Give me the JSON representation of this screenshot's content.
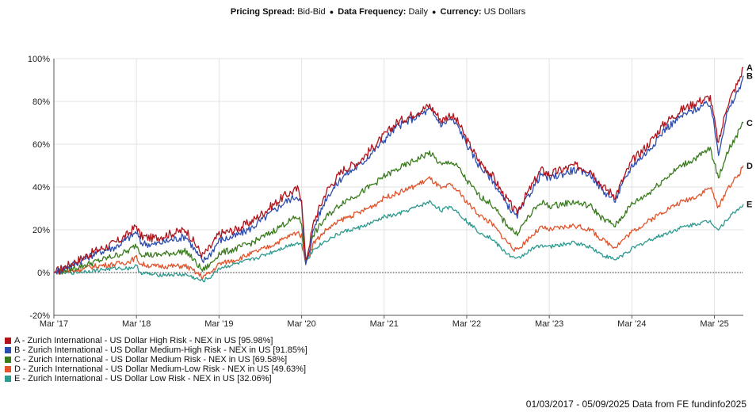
{
  "header": {
    "pricing_label": "Pricing Spread:",
    "pricing_value": "Bid-Bid",
    "frequency_label": "Data Frequency:",
    "frequency_value": "Daily",
    "currency_label": "Currency:",
    "currency_value": "US Dollars",
    "separator": "●"
  },
  "footer": {
    "text": "01/03/2017 - 05/09/2025 Data from FE fundinfo2025"
  },
  "chart_data": {
    "type": "line",
    "title": "",
    "xlabel": "",
    "ylabel": "",
    "x_ticks": [
      "Mar '17",
      "Mar '18",
      "Mar '19",
      "Mar '20",
      "Mar '21",
      "Mar '22",
      "Mar '23",
      "Mar '24",
      "Mar '25"
    ],
    "x_range": [
      2017.0,
      2025.35
    ],
    "x_tick_positions": [
      2017.0,
      2018.0,
      2019.0,
      2020.0,
      2021.0,
      2022.0,
      2023.0,
      2024.0,
      2025.0
    ],
    "y_ticks": [
      "100%",
      "80%",
      "60%",
      "40%",
      "20%",
      "0%",
      "-20%"
    ],
    "y_tick_values": [
      100,
      80,
      60,
      40,
      20,
      0,
      -20
    ],
    "ylim": [
      -20,
      100
    ],
    "grid": true,
    "legend_position": "bottom-left",
    "series": [
      {
        "name": "A - Zurich International - US Dollar High Risk - NEX in US [95.98%]",
        "end_label": "A",
        "color": "#b2131b",
        "x": [
          2017.0,
          2017.25,
          2017.5,
          2017.75,
          2017.9,
          2018.0,
          2018.05,
          2018.2,
          2018.4,
          2018.6,
          2018.8,
          2018.9,
          2019.0,
          2019.2,
          2019.4,
          2019.6,
          2019.8,
          2019.95,
          2020.0,
          2020.05,
          2020.15,
          2020.3,
          2020.5,
          2020.7,
          2020.9,
          2021.0,
          2021.15,
          2021.35,
          2021.55,
          2021.7,
          2021.8,
          2021.9,
          2022.0,
          2022.15,
          2022.3,
          2022.45,
          2022.6,
          2022.75,
          2022.9,
          2023.0,
          2023.15,
          2023.3,
          2023.5,
          2023.65,
          2023.8,
          2024.0,
          2024.2,
          2024.4,
          2024.6,
          2024.8,
          2024.95,
          2025.05,
          2025.15,
          2025.3,
          2025.35
        ],
        "y": [
          0,
          5,
          10,
          14,
          18,
          22,
          17,
          16,
          18,
          20,
          8,
          12,
          18,
          20,
          24,
          30,
          36,
          39,
          35,
          5,
          24,
          38,
          48,
          52,
          60,
          64,
          70,
          74,
          78,
          71,
          74,
          70,
          62,
          52,
          46,
          36,
          28,
          38,
          48,
          46,
          48,
          50,
          48,
          40,
          36,
          52,
          60,
          70,
          76,
          80,
          82,
          60,
          78,
          90,
          96
        ]
      },
      {
        "name": "B - Zurich International - US Dollar Medium-High Risk - NEX in US [91.85%]",
        "end_label": "B",
        "color": "#2c4db0",
        "x": [
          2017.0,
          2017.25,
          2017.5,
          2017.75,
          2017.9,
          2018.0,
          2018.05,
          2018.2,
          2018.4,
          2018.6,
          2018.8,
          2018.9,
          2019.0,
          2019.2,
          2019.4,
          2019.6,
          2019.8,
          2019.95,
          2020.0,
          2020.05,
          2020.15,
          2020.3,
          2020.5,
          2020.7,
          2020.9,
          2021.0,
          2021.15,
          2021.35,
          2021.55,
          2021.7,
          2021.8,
          2021.9,
          2022.0,
          2022.15,
          2022.3,
          2022.45,
          2022.6,
          2022.75,
          2022.9,
          2023.0,
          2023.15,
          2023.3,
          2023.5,
          2023.65,
          2023.8,
          2024.0,
          2024.2,
          2024.4,
          2024.6,
          2024.8,
          2024.95,
          2025.05,
          2025.15,
          2025.3,
          2025.35
        ],
        "y": [
          0,
          4,
          9,
          12,
          16,
          19,
          14,
          13,
          15,
          17,
          5,
          9,
          15,
          17,
          21,
          27,
          33,
          36,
          32,
          3,
          21,
          35,
          45,
          50,
          58,
          62,
          68,
          72,
          76,
          69,
          72,
          68,
          60,
          50,
          44,
          34,
          26,
          36,
          46,
          44,
          46,
          48,
          46,
          38,
          34,
          50,
          57,
          67,
          73,
          77,
          79,
          56,
          74,
          86,
          92
        ]
      },
      {
        "name": "C - Zurich International - US Dollar Medium Risk - NEX in US [69.58%]",
        "end_label": "C",
        "color": "#3a7b1e",
        "x": [
          2017.0,
          2017.25,
          2017.5,
          2017.75,
          2017.9,
          2018.0,
          2018.05,
          2018.2,
          2018.4,
          2018.6,
          2018.8,
          2018.9,
          2019.0,
          2019.2,
          2019.4,
          2019.6,
          2019.8,
          2019.95,
          2020.0,
          2020.05,
          2020.15,
          2020.3,
          2020.5,
          2020.7,
          2020.9,
          2021.0,
          2021.15,
          2021.35,
          2021.55,
          2021.7,
          2021.8,
          2021.9,
          2022.0,
          2022.15,
          2022.3,
          2022.45,
          2022.6,
          2022.75,
          2022.9,
          2023.0,
          2023.15,
          2023.3,
          2023.5,
          2023.65,
          2023.8,
          2024.0,
          2024.2,
          2024.4,
          2024.6,
          2024.8,
          2024.95,
          2025.05,
          2025.15,
          2025.3,
          2025.35
        ],
        "y": [
          0,
          2,
          5,
          8,
          10,
          13,
          9,
          8,
          9,
          10,
          1,
          4,
          9,
          11,
          14,
          18,
          23,
          26,
          23,
          5,
          18,
          26,
          33,
          37,
          42,
          45,
          48,
          52,
          56,
          50,
          52,
          49,
          43,
          36,
          32,
          24,
          18,
          26,
          33,
          31,
          32,
          33,
          31,
          25,
          22,
          32,
          37,
          44,
          50,
          54,
          58,
          44,
          56,
          66,
          70
        ]
      },
      {
        "name": "D - Zurich International - US Dollar Medium-Low Risk - NEX in US [49.63%]",
        "end_label": "D",
        "color": "#e0532b",
        "x": [
          2017.0,
          2017.25,
          2017.5,
          2017.75,
          2017.9,
          2018.0,
          2018.05,
          2018.2,
          2018.4,
          2018.6,
          2018.8,
          2018.9,
          2019.0,
          2019.2,
          2019.4,
          2019.6,
          2019.8,
          2019.95,
          2020.0,
          2020.05,
          2020.15,
          2020.3,
          2020.5,
          2020.7,
          2020.9,
          2021.0,
          2021.15,
          2021.35,
          2021.55,
          2021.7,
          2021.8,
          2021.9,
          2022.0,
          2022.15,
          2022.3,
          2022.45,
          2022.6,
          2022.75,
          2022.9,
          2023.0,
          2023.15,
          2023.3,
          2023.5,
          2023.65,
          2023.8,
          2024.0,
          2024.2,
          2024.4,
          2024.6,
          2024.8,
          2024.95,
          2025.05,
          2025.15,
          2025.3,
          2025.35
        ],
        "y": [
          0,
          1,
          3,
          4,
          5,
          7,
          4,
          3,
          3,
          3,
          -2,
          0,
          4,
          6,
          9,
          12,
          16,
          19,
          17,
          5,
          14,
          20,
          25,
          28,
          32,
          35,
          37,
          40,
          44,
          39,
          41,
          38,
          33,
          27,
          23,
          16,
          10,
          16,
          21,
          20,
          21,
          22,
          20,
          15,
          12,
          19,
          24,
          29,
          33,
          36,
          40,
          30,
          39,
          46,
          50
        ]
      },
      {
        "name": "E - Zurich International - US Dollar Low Risk - NEX in US [32.06%]",
        "end_label": "E",
        "color": "#2e9a8f",
        "x": [
          2017.0,
          2017.25,
          2017.5,
          2017.75,
          2017.9,
          2018.0,
          2018.05,
          2018.2,
          2018.4,
          2018.6,
          2018.8,
          2018.9,
          2019.0,
          2019.2,
          2019.4,
          2019.6,
          2019.8,
          2019.95,
          2020.0,
          2020.05,
          2020.15,
          2020.3,
          2020.5,
          2020.7,
          2020.9,
          2021.0,
          2021.15,
          2021.35,
          2021.55,
          2021.7,
          2021.8,
          2021.9,
          2022.0,
          2022.15,
          2022.3,
          2022.45,
          2022.6,
          2022.75,
          2022.9,
          2023.0,
          2023.15,
          2023.3,
          2023.5,
          2023.65,
          2023.8,
          2024.0,
          2024.2,
          2024.4,
          2024.6,
          2024.8,
          2024.95,
          2025.05,
          2025.15,
          2025.3,
          2025.35
        ],
        "y": [
          0,
          0,
          1,
          2,
          2,
          3,
          0,
          -1,
          -1,
          -1,
          -4,
          -2,
          2,
          4,
          6,
          9,
          12,
          14,
          13,
          5,
          11,
          15,
          19,
          21,
          24,
          26,
          27,
          30,
          33,
          29,
          31,
          28,
          24,
          19,
          16,
          10,
          6,
          10,
          13,
          12,
          13,
          14,
          12,
          8,
          6,
          11,
          15,
          18,
          21,
          23,
          24,
          20,
          25,
          30,
          32
        ]
      }
    ]
  }
}
